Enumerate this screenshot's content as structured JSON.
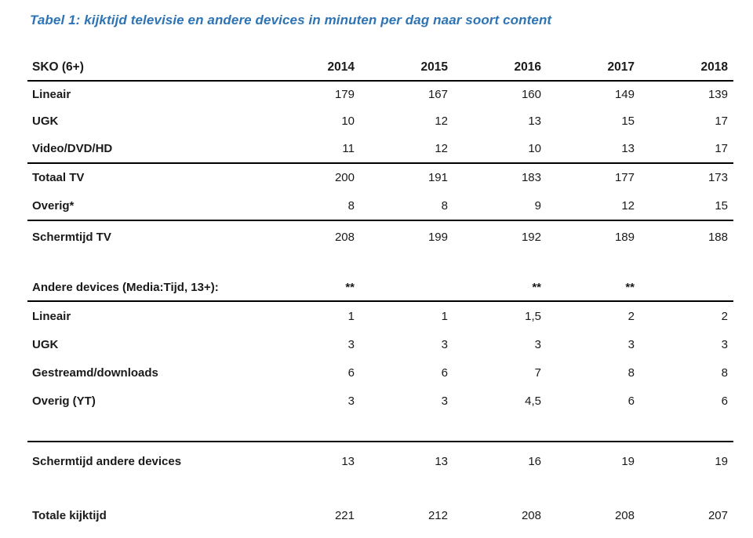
{
  "title": "Tabel 1: kijktijd televisie en andere devices in minuten per dag naar soort content",
  "colors": {
    "title_blue": "#2e74b5",
    "text": "#1a1a1a",
    "rule": "#000000"
  },
  "table": {
    "header": {
      "label": "SKO (6+)",
      "years": [
        "2014",
        "2015",
        "2016",
        "2017",
        "2018"
      ]
    },
    "rows": [
      {
        "label": "Lineair",
        "values": [
          "179",
          "167",
          "160",
          "149",
          "139"
        ]
      },
      {
        "label": "UGK",
        "values": [
          "10",
          "12",
          "13",
          "15",
          "17"
        ]
      },
      {
        "label": "Video/DVD/HD",
        "values": [
          "11",
          "12",
          "10",
          "13",
          "17"
        ]
      },
      {
        "label": "Totaal TV",
        "values": [
          "200",
          "191",
          "183",
          "177",
          "173"
        ]
      },
      {
        "label": "Overig*",
        "values": [
          "8",
          "8",
          "9",
          "12",
          "15"
        ]
      },
      {
        "label": "Schermtijd TV",
        "values": [
          "208",
          "199",
          "192",
          "189",
          "188"
        ]
      },
      {
        "label": "Andere devices (Media:Tijd, 13+):",
        "values": [
          "**",
          "",
          "**",
          "**",
          ""
        ]
      },
      {
        "label": "Lineair",
        "values": [
          "1",
          "1",
          "1,5",
          "2",
          "2"
        ]
      },
      {
        "label": "UGK",
        "values": [
          "3",
          "3",
          "3",
          "3",
          "3"
        ]
      },
      {
        "label": "Gestreamd/downloads",
        "values": [
          "6",
          "6",
          "7",
          "8",
          "8"
        ]
      },
      {
        "label": "Overig (YT)",
        "values": [
          "3",
          "3",
          "4,5",
          "6",
          "6"
        ]
      },
      {
        "label": "Schermtijd andere devices",
        "values": [
          "13",
          "13",
          "16",
          "19",
          "19"
        ]
      },
      {
        "label": "Totale kijktijd",
        "values": [
          "221",
          "212",
          "208",
          "208",
          "207"
        ]
      }
    ]
  }
}
